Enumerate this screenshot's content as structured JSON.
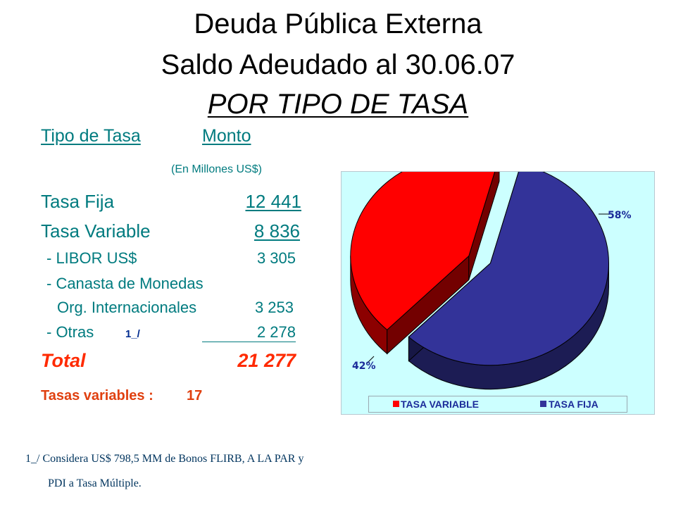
{
  "title": {
    "line1": "Deuda Pública Externa",
    "line2": "Saldo Adeudado al 30.06.07",
    "line3": "POR TIPO DE TASA"
  },
  "table": {
    "header_tipo": "Tipo de Tasa",
    "header_monto": "Monto",
    "unit": "(En Millones US$)",
    "fija_label": "Tasa Fija",
    "fija_value": "12 441",
    "variable_label": "Tasa Variable",
    "variable_value": "8 836",
    "libor_label": "- LIBOR US$",
    "libor_value": "3 305",
    "canasta_label": "- Canasta de Monedas",
    "org_label": "Org. Internacionales",
    "org_value": "3 253",
    "otras_label": "- Otras",
    "otras_note": "1_/",
    "otras_value": "2 278",
    "total_label": "Total",
    "total_value": "21 277",
    "variable_count_label": "Tasas variables :",
    "variable_count_value": "17"
  },
  "footnote": {
    "line1": "1_/ Considera US$ 798,5 MM de Bonos FLIRB, A LA PAR y",
    "line2": "PDI  a Tasa Múltiple."
  },
  "chart_data": {
    "type": "pie",
    "series": [
      {
        "name": "TASA FIJA",
        "value": 58,
        "label": "58%",
        "color": "#333399"
      },
      {
        "name": "TASA VARIABLE",
        "value": 42,
        "label": "42%",
        "color": "#ff0000"
      }
    ],
    "legend": [
      "TASA VARIABLE",
      "TASA FIJA"
    ],
    "legend_position": "bottom",
    "background": "#ccffff",
    "style": "3d-exploded"
  }
}
